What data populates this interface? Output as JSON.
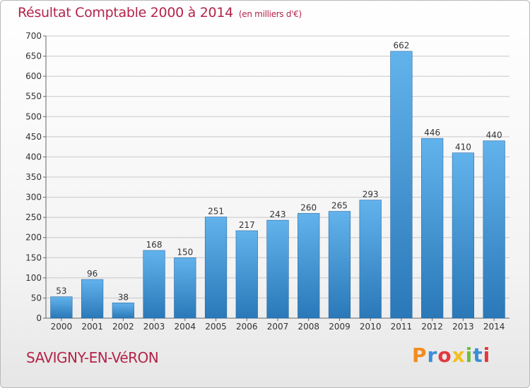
{
  "title": "Résultat Comptable 2000 à 2014",
  "subtitle": "(en milliers d'€)",
  "commune": "SAVIGNY-EN-VéRON",
  "logo": {
    "text": "Proxiti",
    "letter_colors": [
      "#f28c1e",
      "#3a8fd6",
      "#e0393e",
      "#f2c01e",
      "#6cbf3b",
      "#3a8fd6",
      "#e0393e"
    ]
  },
  "colors": {
    "title": "#b4234b",
    "bar_top": "#62b3ec",
    "bar_bottom": "#2a78b8",
    "grid": "#c8c8c8"
  },
  "chart_data": {
    "type": "bar",
    "categories": [
      "2000",
      "2001",
      "2002",
      "2003",
      "2004",
      "2005",
      "2006",
      "2007",
      "2008",
      "2009",
      "2010",
      "2011",
      "2012",
      "2013",
      "2014"
    ],
    "values": [
      53,
      96,
      38,
      168,
      150,
      251,
      217,
      243,
      260,
      265,
      293,
      662,
      446,
      410,
      440
    ],
    "ylim": [
      0,
      700
    ],
    "yticks": [
      0,
      50,
      100,
      150,
      200,
      250,
      300,
      350,
      400,
      450,
      500,
      550,
      600,
      650,
      700
    ],
    "grid": true,
    "data_labels": true
  }
}
